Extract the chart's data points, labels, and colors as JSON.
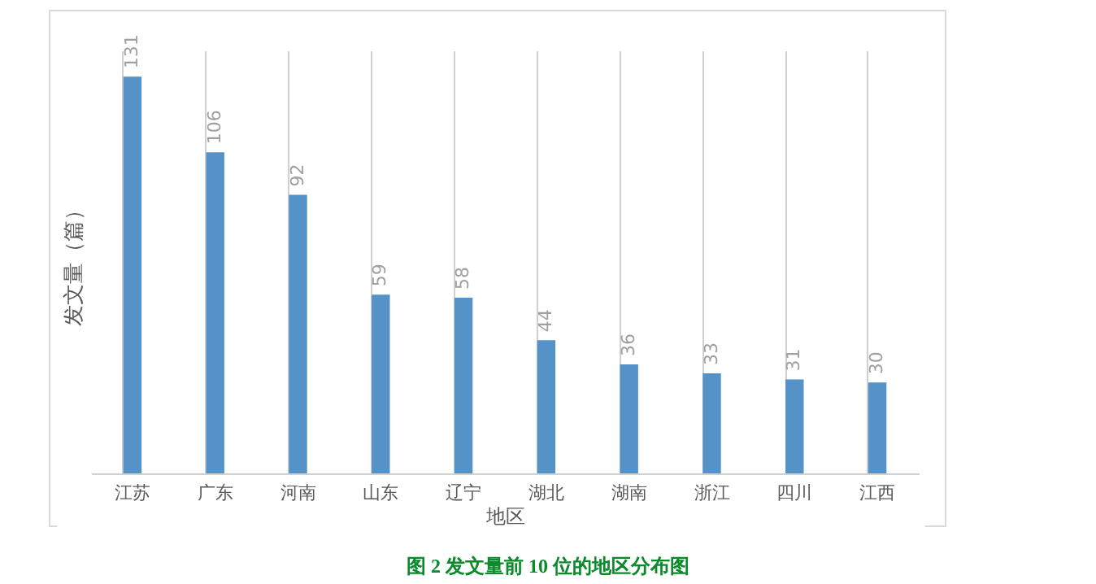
{
  "chart_data": {
    "type": "bar",
    "categories": [
      "江苏",
      "广东",
      "河南",
      "山东",
      "辽宁",
      "湖北",
      "湖南",
      "浙江",
      "四川",
      "江西"
    ],
    "values": [
      131,
      106,
      92,
      59,
      58,
      44,
      36,
      33,
      31,
      30
    ],
    "color": "#5592c8",
    "xlabel": "地区",
    "ylabel": "发文量（篇）",
    "data_labels": true,
    "grid": "x",
    "annotations": [
      "图 2 发文量前 10 位的地区分布图"
    ]
  }
}
